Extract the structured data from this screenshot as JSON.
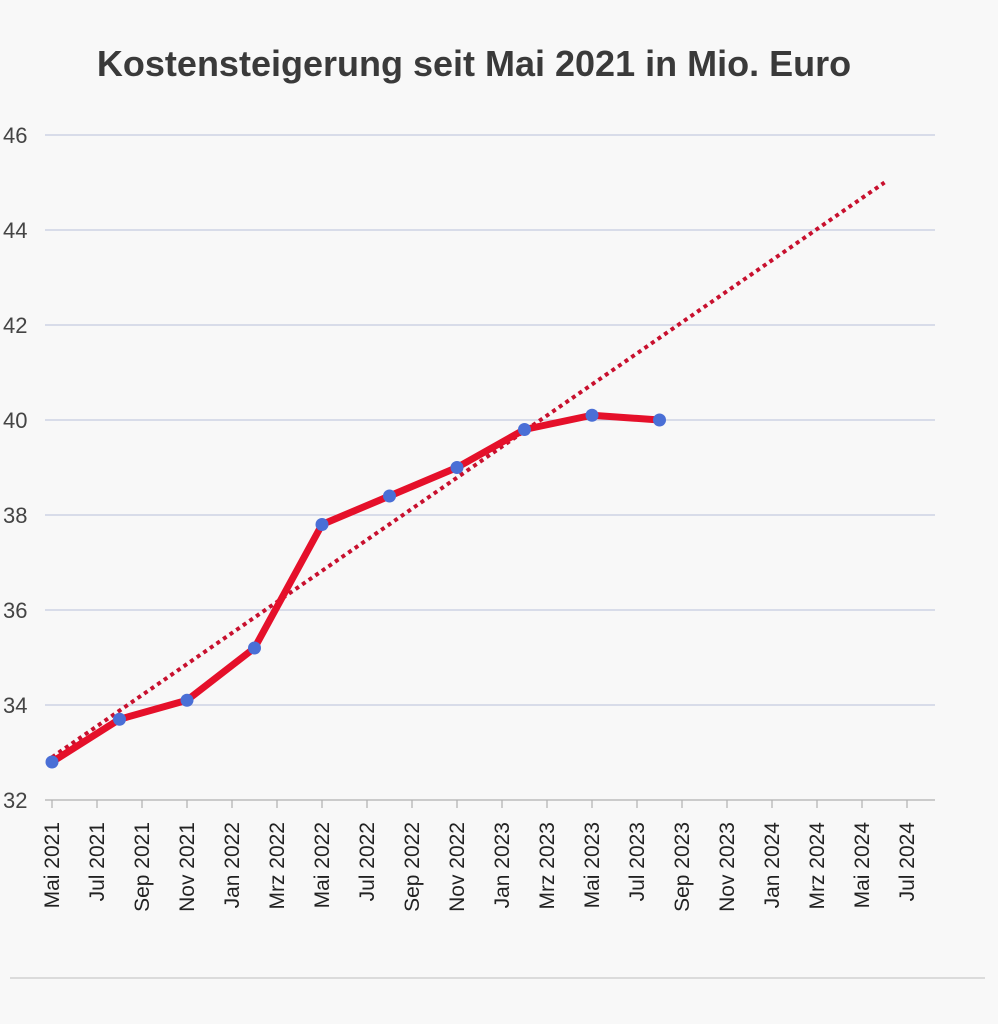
{
  "chart_data": {
    "type": "line",
    "title": "Kostensteigerung seit Mai 2021 in Mio. Euro",
    "xlabel": "",
    "ylabel": "",
    "ylim": [
      32,
      46
    ],
    "yticks": [
      "32",
      "34",
      "36",
      "38",
      "40",
      "42",
      "44",
      "46"
    ],
    "tick_labels": [
      "Mai 2021",
      "Jul 2021",
      "Sep 2021",
      "Nov 2021",
      "Jan 2022",
      "Mrz 2022",
      "Mai 2022",
      "Jul 2022",
      "Sep 2022",
      "Nov 2022",
      "Jan 2023",
      "Mrz 2023",
      "Mai 2023",
      "Jul 2023",
      "Sep 2023",
      "Nov 2023",
      "Jan 2024",
      "Mrz 2024",
      "Mai 2024",
      "Jul 2024"
    ],
    "grid": true,
    "legend": "none",
    "series": [
      {
        "style": "solid-with-markers",
        "color": "#e5102a",
        "marker_color": "#4a6fd6",
        "points": [
          {
            "x": "2021-05",
            "y": 32.8
          },
          {
            "x": "2021-08",
            "y": 33.7
          },
          {
            "x": "2021-11",
            "y": 34.1
          },
          {
            "x": "2022-02",
            "y": 35.2
          },
          {
            "x": "2022-05",
            "y": 37.8
          },
          {
            "x": "2022-08",
            "y": 38.4
          },
          {
            "x": "2022-11",
            "y": 39.0
          },
          {
            "x": "2023-02",
            "y": 39.8
          },
          {
            "x": "2023-05",
            "y": 40.1
          },
          {
            "x": "2023-08",
            "y": 40.0
          }
        ]
      },
      {
        "style": "dotted-trend",
        "color": "#c8102e",
        "points": [
          {
            "x": "2021-05",
            "y": 32.9
          },
          {
            "x": "2024-06",
            "y": 45.0
          }
        ]
      }
    ]
  }
}
